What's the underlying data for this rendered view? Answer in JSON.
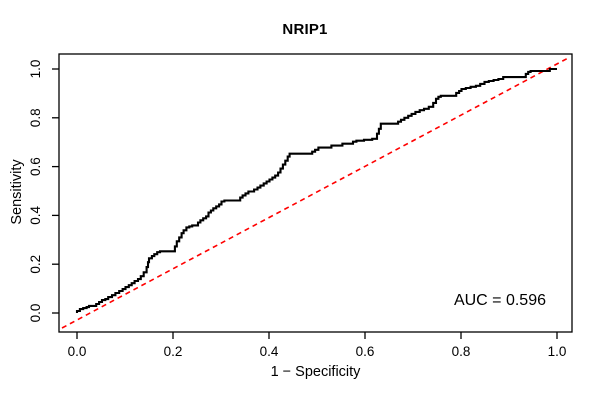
{
  "figure": {
    "title": "NRIP1",
    "xlabel": "1 − Specificity",
    "ylabel": "Sensitivity",
    "auc_label": "AUC = 0.596"
  },
  "chart_data": {
    "type": "line",
    "subtype": "roc-curve",
    "title": "NRIP1",
    "xlabel": "1 − Specificity",
    "ylabel": "Sensitivity",
    "xlim": [
      0,
      1
    ],
    "ylim": [
      0,
      1
    ],
    "x_ticks": [
      0,
      0.2,
      0.4,
      0.6,
      0.8,
      1
    ],
    "y_ticks": [
      0,
      0.2,
      0.4,
      0.6,
      0.8,
      1
    ],
    "x_tick_labels": [
      "0.0",
      "0.2",
      "0.4",
      "0.6",
      "0.8",
      "1.0"
    ],
    "y_tick_labels": [
      "0.0",
      "0.2",
      "0.4",
      "0.6",
      "0.8",
      "1.0"
    ],
    "grid": false,
    "legend": "none",
    "auc": 0.596,
    "annotation": "AUC = 0.596",
    "series": [
      {
        "name": "ROC curve (NRIP1)",
        "render": "step",
        "color": "#000000",
        "line_style": "solid",
        "points": [
          [
            0.0,
            0.0
          ],
          [
            0.006,
            0.008
          ],
          [
            0.013,
            0.016
          ],
          [
            0.02,
            0.02
          ],
          [
            0.025,
            0.024
          ],
          [
            0.04,
            0.029
          ],
          [
            0.046,
            0.037
          ],
          [
            0.052,
            0.045
          ],
          [
            0.059,
            0.053
          ],
          [
            0.065,
            0.057
          ],
          [
            0.073,
            0.065
          ],
          [
            0.08,
            0.073
          ],
          [
            0.088,
            0.082
          ],
          [
            0.095,
            0.09
          ],
          [
            0.101,
            0.098
          ],
          [
            0.108,
            0.106
          ],
          [
            0.114,
            0.114
          ],
          [
            0.12,
            0.122
          ],
          [
            0.127,
            0.131
          ],
          [
            0.133,
            0.139
          ],
          [
            0.139,
            0.151
          ],
          [
            0.145,
            0.167
          ],
          [
            0.148,
            0.188
          ],
          [
            0.15,
            0.208
          ],
          [
            0.156,
            0.224
          ],
          [
            0.161,
            0.233
          ],
          [
            0.167,
            0.241
          ],
          [
            0.173,
            0.249
          ],
          [
            0.179,
            0.253
          ],
          [
            0.204,
            0.253
          ],
          [
            0.208,
            0.273
          ],
          [
            0.213,
            0.294
          ],
          [
            0.218,
            0.31
          ],
          [
            0.222,
            0.327
          ],
          [
            0.228,
            0.339
          ],
          [
            0.234,
            0.351
          ],
          [
            0.24,
            0.355
          ],
          [
            0.252,
            0.359
          ],
          [
            0.257,
            0.371
          ],
          [
            0.263,
            0.38
          ],
          [
            0.269,
            0.388
          ],
          [
            0.274,
            0.396
          ],
          [
            0.279,
            0.412
          ],
          [
            0.284,
            0.42
          ],
          [
            0.29,
            0.429
          ],
          [
            0.296,
            0.437
          ],
          [
            0.301,
            0.445
          ],
          [
            0.307,
            0.457
          ],
          [
            0.34,
            0.461
          ],
          [
            0.345,
            0.473
          ],
          [
            0.351,
            0.482
          ],
          [
            0.357,
            0.49
          ],
          [
            0.369,
            0.498
          ],
          [
            0.376,
            0.506
          ],
          [
            0.382,
            0.514
          ],
          [
            0.389,
            0.522
          ],
          [
            0.395,
            0.531
          ],
          [
            0.401,
            0.539
          ],
          [
            0.407,
            0.547
          ],
          [
            0.413,
            0.555
          ],
          [
            0.419,
            0.563
          ],
          [
            0.424,
            0.576
          ],
          [
            0.429,
            0.592
          ],
          [
            0.434,
            0.608
          ],
          [
            0.439,
            0.624
          ],
          [
            0.443,
            0.641
          ],
          [
            0.447,
            0.653
          ],
          [
            0.49,
            0.653
          ],
          [
            0.496,
            0.661
          ],
          [
            0.503,
            0.669
          ],
          [
            0.511,
            0.678
          ],
          [
            0.53,
            0.678
          ],
          [
            0.537,
            0.686
          ],
          [
            0.553,
            0.686
          ],
          [
            0.56,
            0.694
          ],
          [
            0.575,
            0.694
          ],
          [
            0.582,
            0.702
          ],
          [
            0.598,
            0.706
          ],
          [
            0.615,
            0.71
          ],
          [
            0.625,
            0.714
          ],
          [
            0.629,
            0.735
          ],
          [
            0.633,
            0.755
          ],
          [
            0.637,
            0.776
          ],
          [
            0.669,
            0.776
          ],
          [
            0.675,
            0.784
          ],
          [
            0.682,
            0.792
          ],
          [
            0.69,
            0.8
          ],
          [
            0.697,
            0.808
          ],
          [
            0.705,
            0.816
          ],
          [
            0.714,
            0.824
          ],
          [
            0.723,
            0.831
          ],
          [
            0.733,
            0.837
          ],
          [
            0.742,
            0.845
          ],
          [
            0.748,
            0.861
          ],
          [
            0.753,
            0.878
          ],
          [
            0.758,
            0.886
          ],
          [
            0.79,
            0.89
          ],
          [
            0.796,
            0.902
          ],
          [
            0.801,
            0.91
          ],
          [
            0.81,
            0.918
          ],
          [
            0.82,
            0.922
          ],
          [
            0.831,
            0.927
          ],
          [
            0.84,
            0.931
          ],
          [
            0.849,
            0.939
          ],
          [
            0.858,
            0.947
          ],
          [
            0.868,
            0.951
          ],
          [
            0.878,
            0.955
          ],
          [
            0.888,
            0.959
          ],
          [
            0.895,
            0.967
          ],
          [
            0.935,
            0.967
          ],
          [
            0.94,
            0.98
          ],
          [
            0.945,
            0.988
          ],
          [
            0.985,
            0.992
          ],
          [
            0.99,
            1.0
          ],
          [
            1.0,
            1.0
          ]
        ]
      },
      {
        "name": "Chance diagonal",
        "render": "line",
        "color": "#FF0000",
        "line_style": "dashed",
        "points": [
          [
            0,
            0
          ],
          [
            1,
            1
          ]
        ]
      }
    ]
  },
  "colors": {
    "background": "#FFFFFF",
    "frame": "#000000",
    "curve": "#000000",
    "diagonal": "#FF0000",
    "text": "#000000"
  }
}
